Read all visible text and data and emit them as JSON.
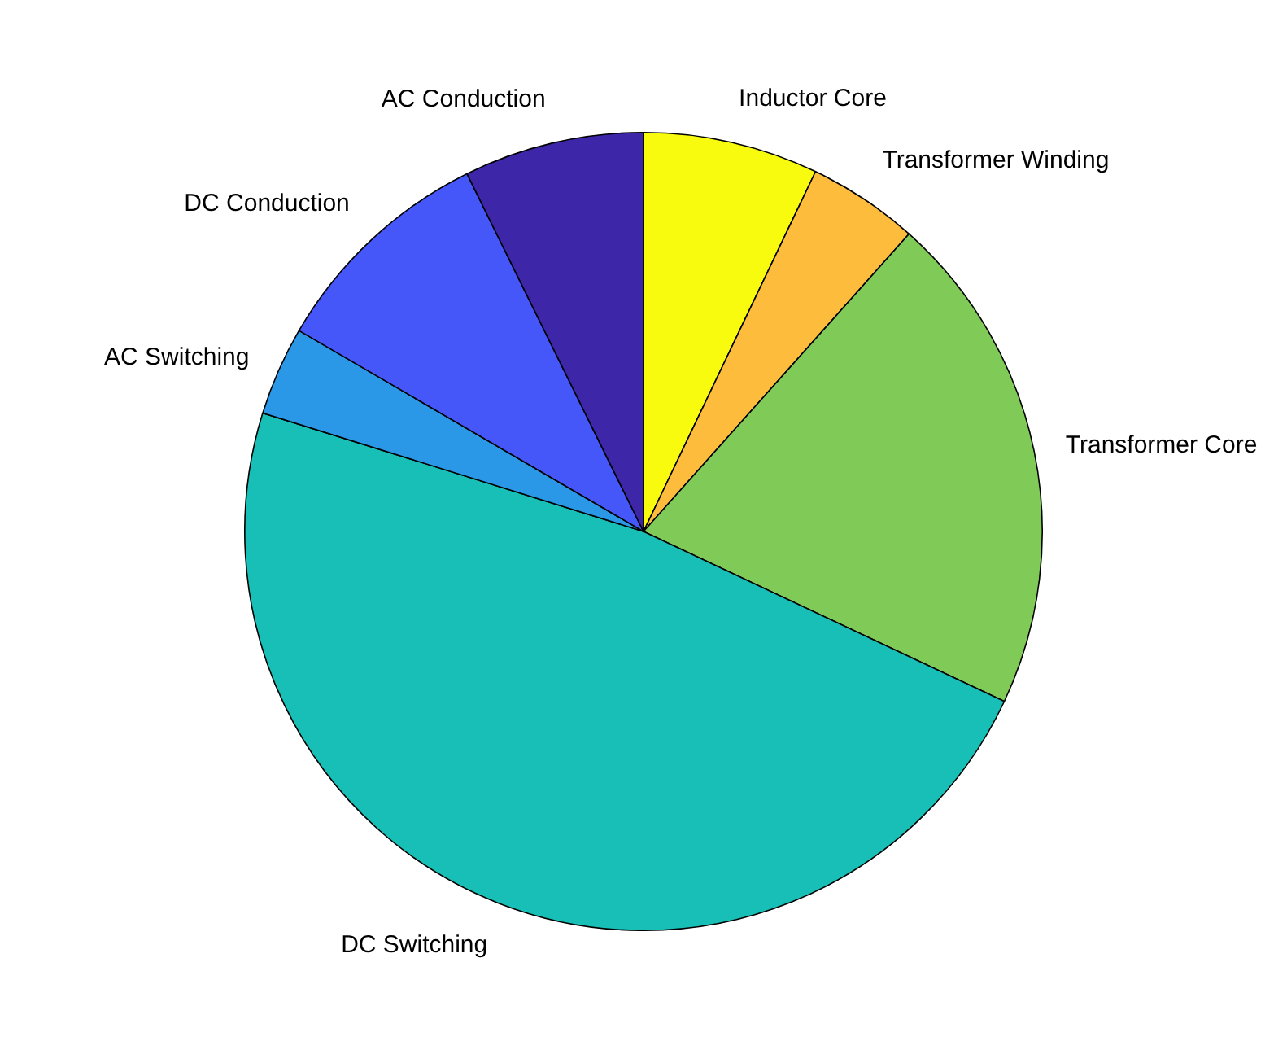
{
  "chart_data": {
    "type": "pie",
    "categories": [
      "Inductor Core",
      "Transformer Winding",
      "Transformer Core",
      "DC Switching",
      "AC Switching",
      "DC Conduction",
      "AC Conduction"
    ],
    "values": [
      7.1,
      4.5,
      20.4,
      47.8,
      3.6,
      9.3,
      7.3
    ],
    "colors": [
      "#f9fb0e",
      "#fdbc3c",
      "#80cb58",
      "#17bfb6",
      "#2a98e6",
      "#4657f9",
      "#3e26a8"
    ],
    "legend": false
  }
}
